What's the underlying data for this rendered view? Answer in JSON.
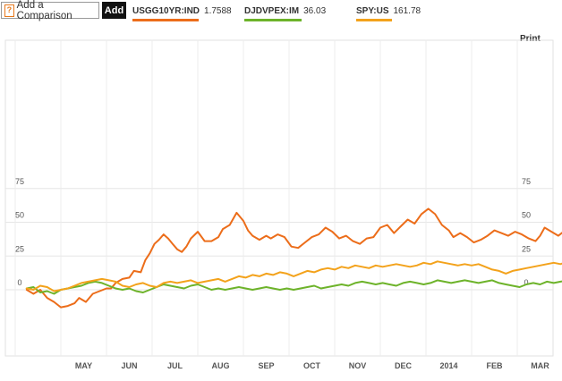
{
  "toolbar": {
    "compare_label": "Add a Comparison",
    "compare_icon": "?",
    "add_label": "Add",
    "print_label": "Print"
  },
  "legend": [
    {
      "ticker": "USGG10YR:IND",
      "value": "1.7588",
      "color": "#ec6d1a"
    },
    {
      "ticker": "DJDVPEX:IM",
      "value": "36.03",
      "color": "#6db32a"
    },
    {
      "ticker": "SPY:US",
      "value": "161.78",
      "color": "#f3a21b"
    }
  ],
  "chart_data": {
    "type": "line",
    "ylim": [
      -15,
      90
    ],
    "y_ticks": [
      0,
      25,
      50,
      75
    ],
    "x_ticks": [
      "MAY",
      "JUN",
      "JUL",
      "AUG",
      "SEP",
      "OCT",
      "NOV",
      "DEC",
      "2014",
      "FEB",
      "MAR"
    ],
    "x_tick_positions": [
      0.5,
      1.5,
      2.5,
      3.5,
      4.5,
      5.5,
      6.5,
      7.5,
      8.5,
      9.5,
      10.5
    ],
    "grid": true,
    "series": [
      {
        "name": "USGG10YR:IND",
        "color": "#ec6d1a",
        "x": [
          -0.75,
          -0.6,
          -0.45,
          -0.3,
          -0.15,
          0,
          0.15,
          0.3,
          0.4,
          0.55,
          0.7,
          0.85,
          1.0,
          1.1,
          1.2,
          1.35,
          1.5,
          1.6,
          1.75,
          1.85,
          1.95,
          2.05,
          2.15,
          2.25,
          2.35,
          2.45,
          2.55,
          2.65,
          2.75,
          2.85,
          3.0,
          3.15,
          3.3,
          3.45,
          3.55,
          3.7,
          3.85,
          4.0,
          4.1,
          4.2,
          4.35,
          4.5,
          4.6,
          4.75,
          4.9,
          5.05,
          5.2,
          5.35,
          5.5,
          5.65,
          5.8,
          5.95,
          6.1,
          6.25,
          6.4,
          6.55,
          6.7,
          6.85,
          7.0,
          7.15,
          7.3,
          7.45,
          7.6,
          7.75,
          7.9,
          8.05,
          8.2,
          8.35,
          8.5,
          8.6,
          8.75,
          8.9,
          9.05,
          9.2,
          9.35,
          9.5,
          9.65,
          9.8,
          9.95,
          10.1,
          10.25,
          10.4,
          10.5,
          10.6,
          10.75,
          10.9,
          11.05,
          11.2,
          11.35
        ],
        "values": [
          0,
          -3,
          0,
          -6,
          -9,
          -13,
          -12,
          -10,
          -6,
          -9,
          -3,
          -1,
          1,
          1,
          5,
          8,
          9,
          14,
          13,
          22,
          27,
          34,
          37,
          41,
          38,
          34,
          30,
          28,
          32,
          38,
          43,
          36,
          36,
          39,
          45,
          48,
          57,
          51,
          44,
          40,
          37,
          40,
          38,
          41,
          39,
          32,
          31,
          35,
          39,
          41,
          46,
          43,
          38,
          40,
          36,
          34,
          38,
          39,
          46,
          48,
          42,
          47,
          52,
          49,
          56,
          60,
          56,
          48,
          44,
          39,
          42,
          39,
          35,
          37,
          40,
          44,
          42,
          40,
          43,
          41,
          38,
          36,
          40,
          46,
          43,
          40,
          44,
          42,
          44
        ]
      },
      {
        "name": "DJDVPEX:IM",
        "color": "#6db32a",
        "x": [
          -0.75,
          -0.6,
          -0.45,
          -0.3,
          -0.15,
          0,
          0.15,
          0.3,
          0.45,
          0.6,
          0.75,
          0.9,
          1.05,
          1.2,
          1.35,
          1.5,
          1.65,
          1.8,
          1.95,
          2.1,
          2.25,
          2.4,
          2.55,
          2.7,
          2.85,
          3.0,
          3.15,
          3.3,
          3.45,
          3.6,
          3.75,
          3.9,
          4.05,
          4.2,
          4.35,
          4.5,
          4.65,
          4.8,
          4.95,
          5.1,
          5.25,
          5.4,
          5.55,
          5.7,
          5.85,
          6.0,
          6.15,
          6.3,
          6.45,
          6.6,
          6.75,
          6.9,
          7.05,
          7.2,
          7.35,
          7.5,
          7.65,
          7.8,
          7.95,
          8.1,
          8.25,
          8.4,
          8.55,
          8.7,
          8.85,
          9.0,
          9.15,
          9.3,
          9.45,
          9.6,
          9.75,
          9.9,
          10.05,
          10.2,
          10.35,
          10.5,
          10.65,
          10.8,
          10.95,
          11.1,
          11.25,
          11.35
        ],
        "values": [
          1,
          2,
          -2,
          -1,
          -3,
          0,
          1,
          2,
          3,
          5,
          6,
          5,
          3,
          1,
          0,
          1,
          -1,
          -2,
          0,
          2,
          4,
          3,
          2,
          1,
          3,
          4,
          2,
          0,
          1,
          0,
          1,
          2,
          1,
          0,
          1,
          2,
          1,
          0,
          1,
          0,
          1,
          2,
          3,
          1,
          2,
          3,
          4,
          3,
          5,
          6,
          5,
          4,
          5,
          4,
          3,
          5,
          6,
          5,
          4,
          5,
          7,
          6,
          5,
          6,
          7,
          6,
          5,
          6,
          7,
          5,
          4,
          3,
          2,
          4,
          5,
          4,
          6,
          5,
          6,
          7,
          6,
          8
        ]
      },
      {
        "name": "SPY:US",
        "color": "#f3a21b",
        "x": [
          -0.75,
          -0.6,
          -0.45,
          -0.3,
          -0.15,
          0,
          0.15,
          0.3,
          0.45,
          0.6,
          0.75,
          0.9,
          1.05,
          1.2,
          1.35,
          1.5,
          1.65,
          1.8,
          1.95,
          2.1,
          2.25,
          2.4,
          2.55,
          2.7,
          2.85,
          3.0,
          3.15,
          3.3,
          3.45,
          3.6,
          3.75,
          3.9,
          4.05,
          4.2,
          4.35,
          4.5,
          4.65,
          4.8,
          4.95,
          5.1,
          5.25,
          5.4,
          5.55,
          5.7,
          5.85,
          6.0,
          6.15,
          6.3,
          6.45,
          6.6,
          6.75,
          6.9,
          7.05,
          7.2,
          7.35,
          7.5,
          7.65,
          7.8,
          7.95,
          8.1,
          8.25,
          8.4,
          8.55,
          8.7,
          8.85,
          9.0,
          9.15,
          9.3,
          9.45,
          9.6,
          9.75,
          9.9,
          10.05,
          10.2,
          10.35,
          10.5,
          10.65,
          10.8,
          10.95,
          11.1,
          11.25,
          11.35
        ],
        "values": [
          1,
          0,
          3,
          2,
          -1,
          0,
          1,
          3,
          5,
          6,
          7,
          8,
          7,
          6,
          3,
          2,
          4,
          5,
          3,
          2,
          5,
          6,
          5,
          6,
          7,
          5,
          6,
          7,
          8,
          6,
          8,
          10,
          9,
          11,
          10,
          12,
          11,
          13,
          12,
          10,
          12,
          14,
          13,
          15,
          16,
          15,
          17,
          16,
          18,
          17,
          16,
          18,
          17,
          18,
          19,
          18,
          17,
          18,
          20,
          19,
          21,
          20,
          19,
          18,
          19,
          18,
          19,
          17,
          15,
          14,
          12,
          14,
          15,
          16,
          17,
          18,
          19,
          20,
          19,
          21,
          20,
          20
        ]
      }
    ]
  }
}
